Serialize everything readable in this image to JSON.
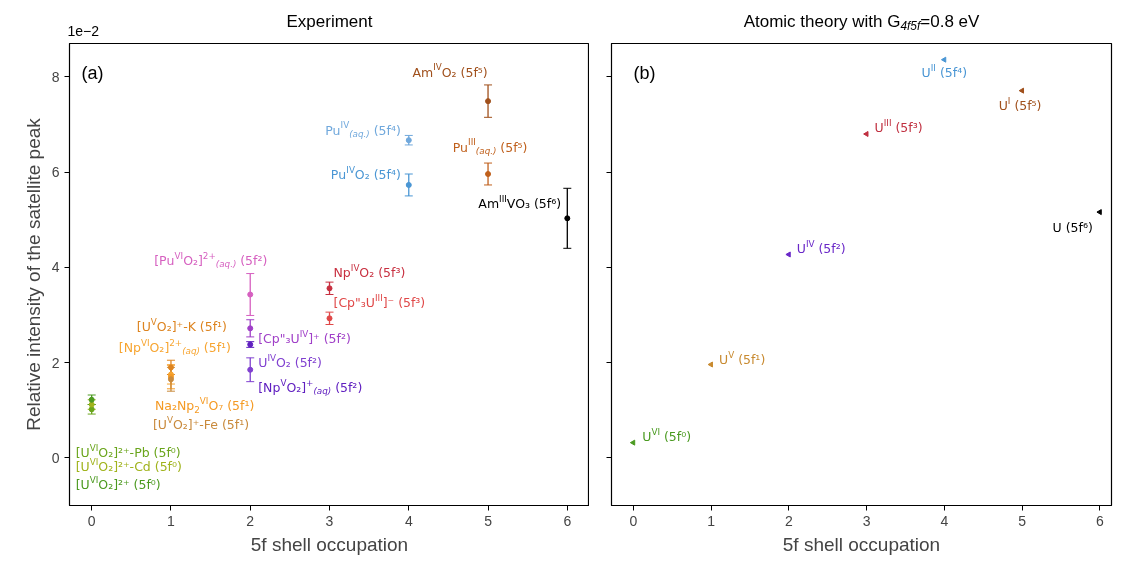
{
  "chart_data": [
    {
      "type": "scatter",
      "title": "Experiment",
      "xlabel": "5f shell occupation",
      "ylabel": "Relative intensity of the satellite peak",
      "xlim": [
        -0.28,
        6.28
      ],
      "ylim": [
        -1,
        8.7
      ],
      "xticks": [
        0,
        1,
        2,
        3,
        4,
        5,
        6
      ],
      "yticks": [
        0,
        2,
        4,
        6,
        8
      ],
      "marker": "circle",
      "annotations": [
        "(a)",
        "1e−2"
      ],
      "series": [
        {
          "name": "[U$^{VI}$O₂]²⁺-Pb (5f⁰)",
          "color": "#6aa51c",
          "x": [
            0
          ],
          "values": [
            1.02
          ],
          "errors": [
            0.1
          ]
        },
        {
          "name": "[U$^{VI}$O₂]²⁺-Cd (5f⁰)",
          "color": "#a0b31c",
          "x": [
            0
          ],
          "values": [
            1.12
          ],
          "errors": [
            0.1
          ]
        },
        {
          "name": "[U$^{VI}$O₂]²⁺ (5f⁰)",
          "color": "#4c9a20",
          "x": [
            0
          ],
          "values": [
            1.22
          ],
          "errors": [
            0.1
          ]
        },
        {
          "name": "[U$^{V}$O₂]⁺-K (5f¹)",
          "color": "#dd8420",
          "x": [
            1
          ],
          "values": [
            1.9
          ],
          "errors": [
            0.15
          ]
        },
        {
          "name": "[Np$^{VI}$O₂]$^{2+}$$_{(aq)}$ (5f¹)",
          "color": "#f7a531",
          "x": [
            1
          ],
          "values": [
            1.75
          ],
          "errors": [
            0.2
          ]
        },
        {
          "name": "Na₂Np$_{2}$$^{VI}$O₇ (5f¹)",
          "color": "#f59a23",
          "x": [
            1
          ],
          "values": [
            1.7
          ],
          "errors": [
            0.25
          ]
        },
        {
          "name": "[U$^{V}$O₂]⁺-Fe (5f¹)",
          "color": "#c98a3c",
          "x": [
            1
          ],
          "values": [
            1.65
          ],
          "errors": [
            0.25
          ]
        },
        {
          "name": "[Pu$^{VI}$O₂]$^{2+}$$_{(aq.)}$ (5f²)",
          "color": "#d660c0",
          "x": [
            2
          ],
          "values": [
            3.43
          ],
          "errors": [
            0.44
          ]
        },
        {
          "name": "[Cp\"₃U$^{IV}$]⁺ (5f²)",
          "color": "#a040c8",
          "x": [
            2
          ],
          "values": [
            2.72
          ],
          "errors": [
            0.18
          ]
        },
        {
          "name": "[Np$^{V}$O₂]$^{+}$$_{(aq)}$ (5f²)",
          "color": "#6020c0",
          "x": [
            2
          ],
          "values": [
            2.38
          ],
          "errors": [
            0.06
          ]
        },
        {
          "name": "U$^{IV}$O₂ (5f²)",
          "color": "#8040d0",
          "x": [
            2
          ],
          "values": [
            1.85
          ],
          "errors": [
            0.25
          ]
        },
        {
          "name": "Np$^{IV}$O₂ (5f³)",
          "color": "#c83040",
          "x": [
            3
          ],
          "values": [
            3.56
          ],
          "errors": [
            0.13
          ]
        },
        {
          "name": "[Cp\"₃U$^{III}$]⁻ (5f³)",
          "color": "#e04848",
          "x": [
            3
          ],
          "values": [
            2.93
          ],
          "errors": [
            0.13
          ]
        },
        {
          "name": "Pu$^{IV}$$_{(aq.)}$ (5f⁴)",
          "color": "#70a8dc",
          "x": [
            4
          ],
          "values": [
            6.67
          ],
          "errors": [
            0.1
          ]
        },
        {
          "name": "Pu$^{IV}$O₂ (5f⁴)",
          "color": "#4a96d4",
          "x": [
            4
          ],
          "values": [
            5.73
          ],
          "errors": [
            0.23
          ]
        },
        {
          "name": "Am$^{IV}$O₂ (5f⁵)",
          "color": "#a0501c",
          "x": [
            5
          ],
          "values": [
            7.49
          ],
          "errors": [
            0.34
          ]
        },
        {
          "name": "Pu$^{III}$$_{(aq.)}$ (5f⁵)",
          "color": "#c0601c",
          "x": [
            5
          ],
          "values": [
            5.96
          ],
          "errors": [
            0.23
          ]
        },
        {
          "name": "Am$^{III}$VO₃ (5f⁶)",
          "color": "#000000",
          "x": [
            6
          ],
          "values": [
            5.03
          ],
          "errors": [
            0.63
          ]
        }
      ]
    },
    {
      "type": "scatter",
      "title": "Atomic theory with G$_{4f5f}$=0.8 eV",
      "xlabel": "5f shell occupation",
      "xlim": [
        -0.28,
        6.15
      ],
      "ylim": [
        -1,
        8.7
      ],
      "xticks": [
        0,
        1,
        2,
        3,
        4,
        5,
        6
      ],
      "yticks": [
        0,
        2,
        4,
        6,
        8
      ],
      "tick_labels": "x",
      "marker": "triangle",
      "annotations": [
        "(b)"
      ],
      "series": [
        {
          "name": "U$^{VI}$ (5f⁰)",
          "color": "#4a9a20",
          "x": [
            0
          ],
          "values": [
            0.32
          ]
        },
        {
          "name": "U$^{V}$ (5f¹)",
          "color": "#c88a30",
          "x": [
            1
          ],
          "values": [
            1.96
          ]
        },
        {
          "name": "U$^{IV}$ (5f²)",
          "color": "#6a28c8",
          "x": [
            2
          ],
          "values": [
            4.27
          ]
        },
        {
          "name": "U$^{III}$ (5f³)",
          "color": "#c03040",
          "x": [
            3
          ],
          "values": [
            6.8
          ]
        },
        {
          "name": "U$^{II}$ (5f⁴)",
          "color": "#4a96d4",
          "x": [
            4
          ],
          "values": [
            8.36
          ]
        },
        {
          "name": "U$^{I}$ (5f⁵)",
          "color": "#a0501c",
          "x": [
            5
          ],
          "values": [
            7.71
          ]
        },
        {
          "name": "U (5f⁶)",
          "color": "#000000",
          "x": [
            6
          ],
          "values": [
            5.16
          ]
        }
      ]
    }
  ]
}
